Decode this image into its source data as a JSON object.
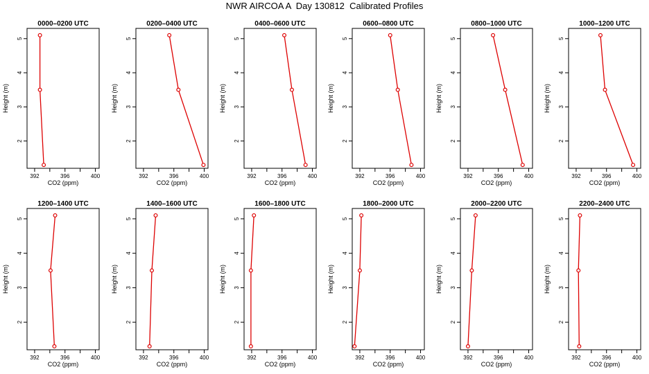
{
  "title": "NWR AIRCOA A  Day 130812  Calibrated Profiles",
  "chart_data": {
    "type": "line",
    "xlabel": "CO2 (ppm)",
    "ylabel": "Height (m)",
    "xlim": [
      391,
      400.5
    ],
    "ylim": [
      1.2,
      5.3
    ],
    "xticks": [
      392,
      396,
      400
    ],
    "xticks_unlabeled": [
      394,
      398
    ],
    "yticks": [
      2,
      3,
      4,
      5
    ],
    "series_color": "#dd0000",
    "panels": [
      {
        "title": "0000–0200 UTC",
        "points": [
          {
            "co2": 393.2,
            "height": 1.3
          },
          {
            "co2": 392.7,
            "height": 3.5
          },
          {
            "co2": 392.7,
            "height": 5.1
          }
        ]
      },
      {
        "title": "0200–0400 UTC",
        "points": [
          {
            "co2": 399.9,
            "height": 1.3
          },
          {
            "co2": 396.6,
            "height": 3.5
          },
          {
            "co2": 395.4,
            "height": 5.1
          }
        ]
      },
      {
        "title": "0400–0600 UTC",
        "points": [
          {
            "co2": 399.1,
            "height": 1.3
          },
          {
            "co2": 397.3,
            "height": 3.5
          },
          {
            "co2": 396.3,
            "height": 5.1
          }
        ]
      },
      {
        "title": "0600–0800 UTC",
        "points": [
          {
            "co2": 398.8,
            "height": 1.3
          },
          {
            "co2": 397.0,
            "height": 3.5
          },
          {
            "co2": 396.0,
            "height": 5.1
          }
        ]
      },
      {
        "title": "0800–1000 UTC",
        "points": [
          {
            "co2": 399.2,
            "height": 1.3
          },
          {
            "co2": 396.9,
            "height": 3.5
          },
          {
            "co2": 395.3,
            "height": 5.1
          }
        ]
      },
      {
        "title": "1000–1200 UTC",
        "points": [
          {
            "co2": 399.5,
            "height": 1.3
          },
          {
            "co2": 395.8,
            "height": 3.5
          },
          {
            "co2": 395.2,
            "height": 5.1
          }
        ]
      },
      {
        "title": "1200–1400 UTC",
        "points": [
          {
            "co2": 394.6,
            "height": 1.3
          },
          {
            "co2": 394.1,
            "height": 3.5
          },
          {
            "co2": 394.7,
            "height": 5.1
          }
        ]
      },
      {
        "title": "1400–1600 UTC",
        "points": [
          {
            "co2": 392.8,
            "height": 1.3
          },
          {
            "co2": 393.1,
            "height": 3.5
          },
          {
            "co2": 393.6,
            "height": 5.1
          }
        ]
      },
      {
        "title": "1600–1800 UTC",
        "points": [
          {
            "co2": 391.9,
            "height": 1.3
          },
          {
            "co2": 391.9,
            "height": 3.5
          },
          {
            "co2": 392.3,
            "height": 5.1
          }
        ]
      },
      {
        "title": "1800–2000 UTC",
        "points": [
          {
            "co2": 391.3,
            "height": 1.3
          },
          {
            "co2": 392.0,
            "height": 3.5
          },
          {
            "co2": 392.2,
            "height": 5.1
          }
        ]
      },
      {
        "title": "2000–2200 UTC",
        "points": [
          {
            "co2": 392.0,
            "height": 1.3
          },
          {
            "co2": 392.5,
            "height": 3.5
          },
          {
            "co2": 393.0,
            "height": 5.1
          }
        ]
      },
      {
        "title": "2200–2400 UTC",
        "points": [
          {
            "co2": 392.4,
            "height": 1.3
          },
          {
            "co2": 392.3,
            "height": 3.5
          },
          {
            "co2": 392.5,
            "height": 5.1
          }
        ]
      }
    ]
  }
}
